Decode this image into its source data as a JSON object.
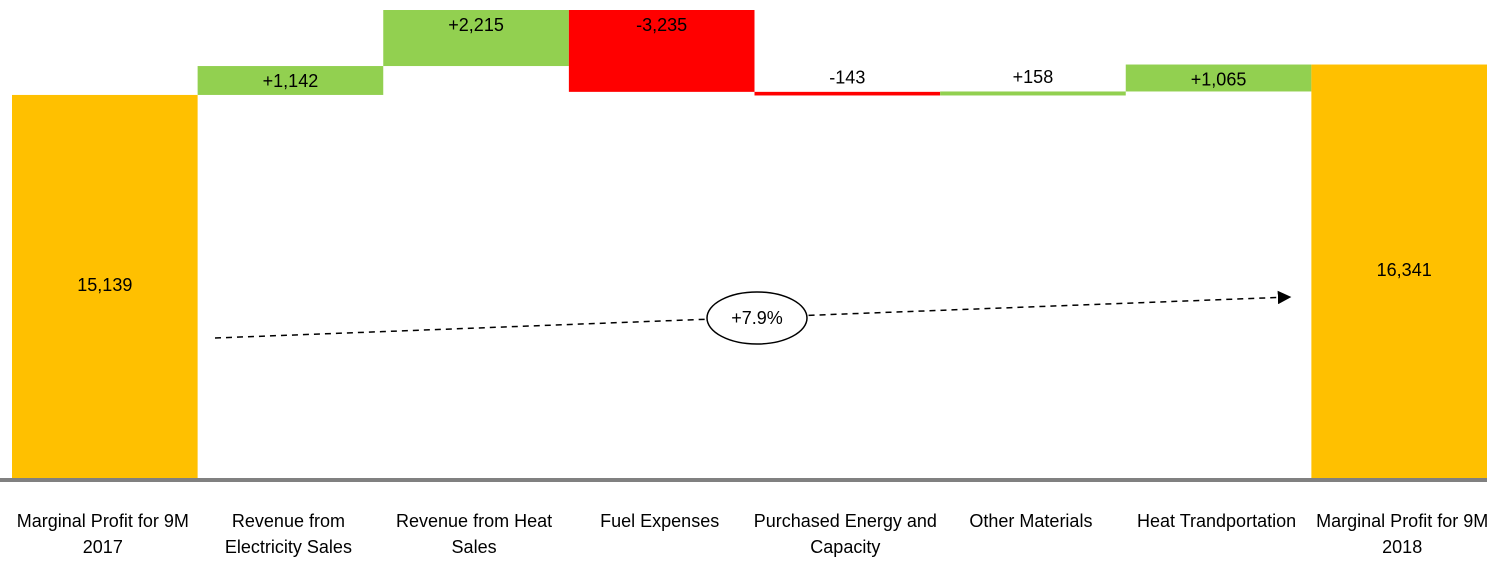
{
  "chart_data": {
    "type": "waterfall",
    "categories": [
      "Marginal Profit for 9M 2017",
      "Revenue from Electricity Sales",
      "Revenue from Heat Sales",
      "Fuel Expenses",
      "Purchased Energy and Capacity",
      "Other Materials",
      "Heat Trandportation",
      "Marginal Profit for 9M 2018"
    ],
    "values": [
      15139,
      1142,
      2215,
      -3235,
      -143,
      158,
      1065,
      16341
    ],
    "value_labels": [
      "15,139",
      "+1,142",
      "+2,215",
      "-3,235",
      "-143",
      "+158",
      "+1,065",
      "16,341"
    ],
    "colors": {
      "total": "#ffc000",
      "increase": "#92d050",
      "decrease": "#ff0000"
    },
    "annotation": "+7.9%"
  }
}
